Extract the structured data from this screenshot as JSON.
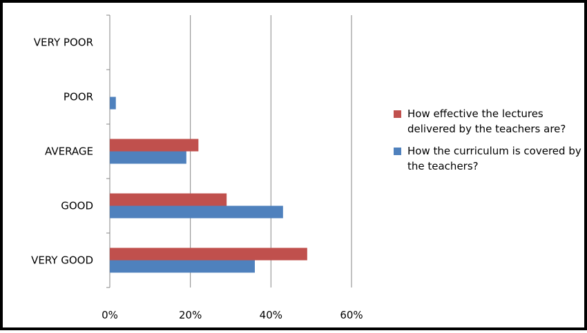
{
  "chart_data": {
    "type": "bar",
    "orientation": "horizontal",
    "categories": [
      "VERY POOR",
      "POOR",
      "AVERAGE",
      "GOOD",
      "VERY GOOD"
    ],
    "series": [
      {
        "name": "How effective the lectures delivered by the teachers are?",
        "color": "#c0504d",
        "values": [
          0,
          0,
          22,
          29,
          49
        ]
      },
      {
        "name": "How the curriculum is covered by the teachers?",
        "color": "#4f81bd",
        "values": [
          0,
          1.5,
          19,
          43,
          36
        ]
      }
    ],
    "xlim": [
      0,
      60
    ],
    "xticks": [
      "0%",
      "20%",
      "40%",
      "60%"
    ],
    "grid": true,
    "legend": "right",
    "title": "",
    "xlabel": "",
    "ylabel": ""
  }
}
